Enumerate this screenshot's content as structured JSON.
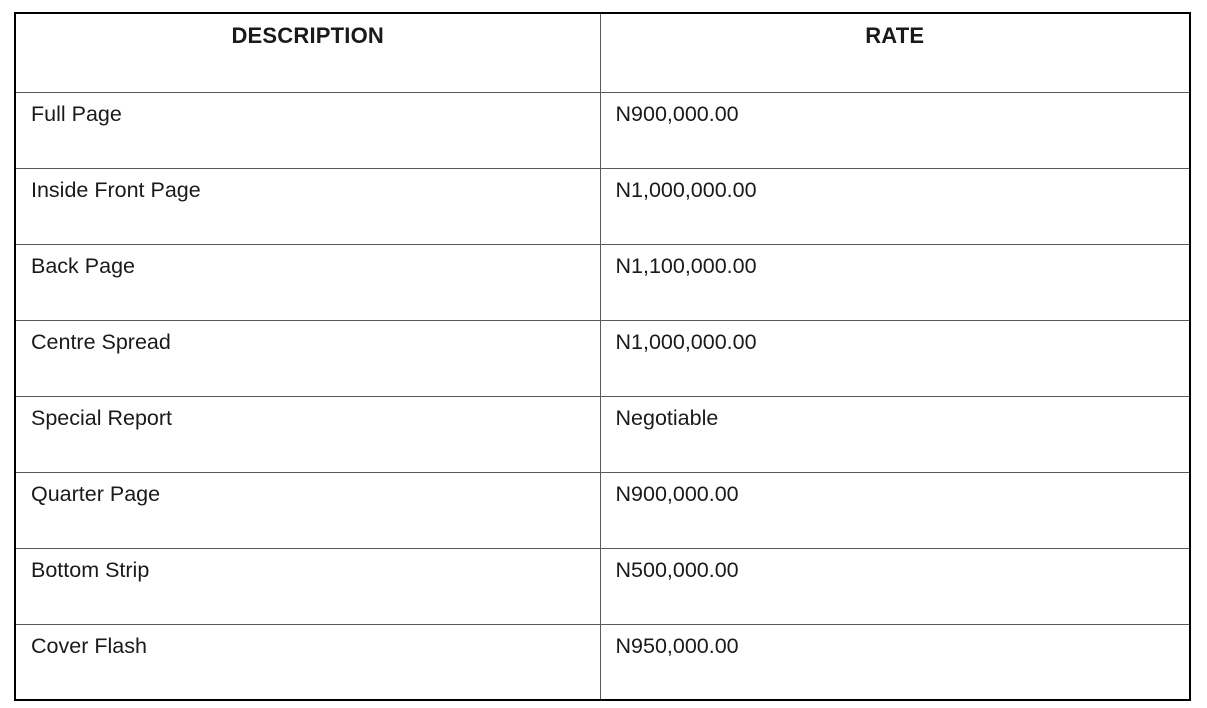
{
  "table": {
    "columns": [
      {
        "label": "DESCRIPTION"
      },
      {
        "label": "RATE"
      }
    ],
    "rows": [
      {
        "description": "Full Page",
        "rate": "N900,000.00"
      },
      {
        "description": "Inside Front Page",
        "rate": "N1,000,000.00"
      },
      {
        "description": "Back Page",
        "rate": "N1,100,000.00"
      },
      {
        "description": "Centre Spread",
        "rate": "N1,000,000.00"
      },
      {
        "description": "Special Report",
        "rate": "Negotiable"
      },
      {
        "description": "Quarter Page",
        "rate": "N900,000.00"
      },
      {
        "description": "Bottom Strip",
        "rate": "N500,000.00"
      },
      {
        "description": "Cover Flash",
        "rate": "N950,000.00"
      }
    ],
    "colors": {
      "border_outer": "#000000",
      "border_inner": "#595959",
      "text": "#1a1a1a",
      "background": "#ffffff"
    }
  }
}
